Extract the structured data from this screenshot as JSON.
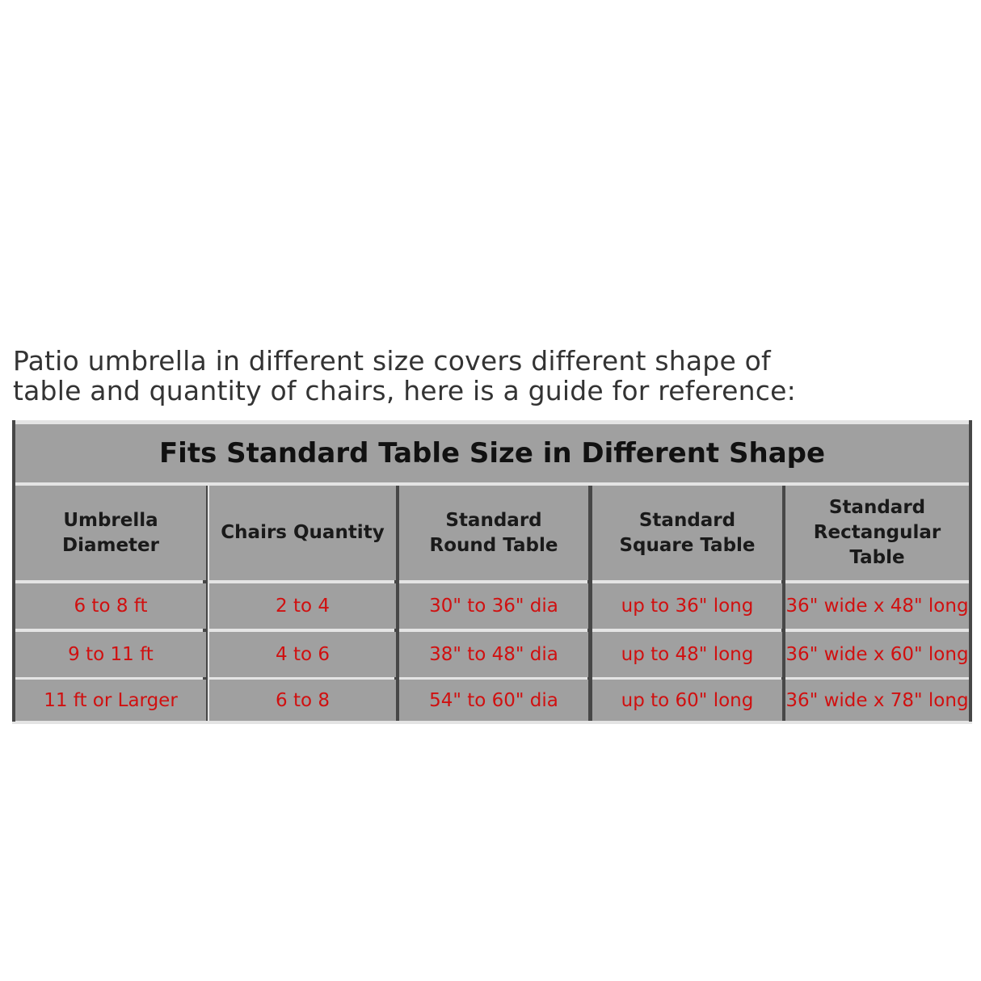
{
  "intro": {
    "line1": "Patio umbrella in different size covers different shape of",
    "line2": "table and quantity of chairs, here is a guide for reference:"
  },
  "table": {
    "title": "Fits Standard Table Size in Different Shape",
    "headers": [
      {
        "line1": "Umbrella Diameter",
        "line2": ""
      },
      {
        "line1": "Chairs Quantity",
        "line2": ""
      },
      {
        "line1": "Standard",
        "line2": "Round Table"
      },
      {
        "line1": "Standard",
        "line2": "Square Table"
      },
      {
        "line1": "Standard",
        "line2": "Rectangular Table"
      }
    ],
    "rows": [
      [
        "6 to 8 ft",
        "2 to 4",
        "30\" to 36\" dia",
        "up to 36\" long",
        "36\" wide x 48\" long"
      ],
      [
        "9 to 11 ft",
        "4 to 6",
        "38\" to 48\" dia",
        "up to 48\" long",
        "36\" wide x 60\" long"
      ],
      [
        "11 ft or Larger",
        "6 to 8",
        "54\" to 60\" dia",
        "up to 60\" long",
        "36\" wide x 78\" long"
      ]
    ],
    "colors": {
      "cell": "#a0a0a0",
      "value_text": "#d01010",
      "divider": "#474747"
    }
  }
}
